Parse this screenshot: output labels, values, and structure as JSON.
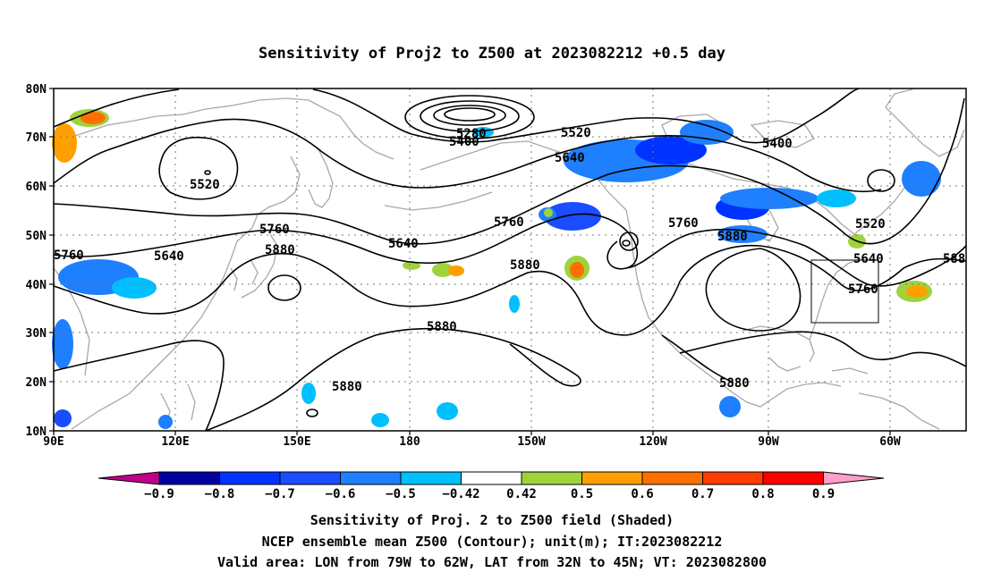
{
  "title": "Sensitivity of Proj2 to Z500 at 2023082212 +0.5 day",
  "lat_labels": [
    "80N",
    "70N",
    "60N",
    "50N",
    "40N",
    "30N",
    "20N",
    "10N"
  ],
  "lon_labels": [
    "90E",
    "120E",
    "150E",
    "180",
    "150W",
    "120W",
    "90W",
    "60W"
  ],
  "contour_labels": {
    "c5280": "5280",
    "c5400a": "5400",
    "c5400b": "5400",
    "c5520a": "5520",
    "c5520b": "5520",
    "c5520c": "5520",
    "c5640a": "5640",
    "c5640b": "5640",
    "c5640c": "5640",
    "c5640d": "5640",
    "c5760a": "5760",
    "c5760b": "5760",
    "c5760c": "5760",
    "c5760d": "5760",
    "c5760e": "5760",
    "c5880a": "5880",
    "c5880b": "5880",
    "c5880c": "5880",
    "c5880d": "5880",
    "c5880e": "5880",
    "c5880f": "5880",
    "c588r": "588"
  },
  "colorbar": {
    "labels": [
      "−0.9",
      "−0.8",
      "−0.7",
      "−0.6",
      "−0.5",
      "−0.42",
      "0.42",
      "0.5",
      "0.6",
      "0.7",
      "0.8",
      "0.9"
    ],
    "colors": [
      "#0000a0",
      "#0033ff",
      "#1a4dff",
      "#1e7fff",
      "#00bfff",
      "#ffffff",
      "#a0d23c",
      "#ffa000",
      "#ff7000",
      "#ff3c00",
      "#ff0000"
    ],
    "end_low": "#c0008c",
    "end_high": "#ff9ec8"
  },
  "captions": {
    "line1": "Sensitivity of Proj. 2 to Z500 field (Shaded)",
    "line2": "NCEP ensemble mean Z500 (Contour); unit(m); IT:2023082212",
    "line3": "Valid area: LON from 79W to 62W, LAT from 32N to 45N; VT: 2023082800"
  }
}
